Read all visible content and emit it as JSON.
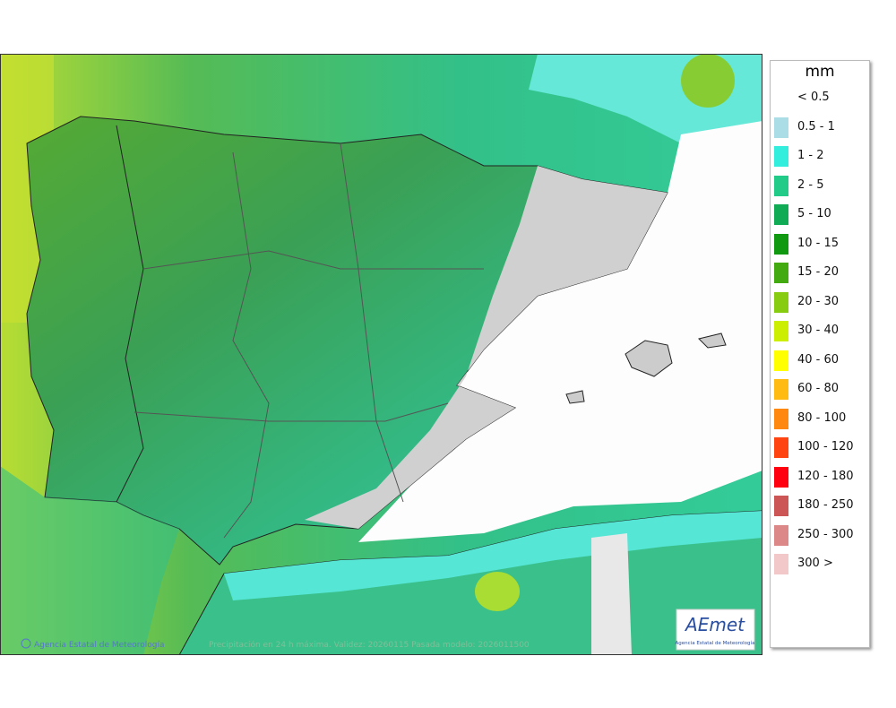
{
  "legend": {
    "unit": "mm",
    "items": [
      {
        "label": "< 0.5"
      },
      {
        "label": "0.5 - 1",
        "color": "#aadde6"
      },
      {
        "label": "1 - 2",
        "color": "#33eedd"
      },
      {
        "label": "2 - 5",
        "color": "#22cc88"
      },
      {
        "label": "5 - 10",
        "color": "#11aa55"
      },
      {
        "label": "10 - 15",
        "color": "#119911"
      },
      {
        "label": "15 - 20",
        "color": "#44aa11"
      },
      {
        "label": "20 - 30",
        "color": "#88cc11"
      },
      {
        "label": "30 - 40",
        "color": "#ccee00"
      },
      {
        "label": "40 - 60",
        "color": "#ffff00"
      },
      {
        "label": "60 - 80",
        "color": "#ffbb11"
      },
      {
        "label": "80 - 100",
        "color": "#ff8811"
      },
      {
        "label": "100 - 120",
        "color": "#ff4411"
      },
      {
        "label": "120 - 180",
        "color": "#ff0011"
      },
      {
        "label": "180 - 250",
        "color": "#cc5555"
      },
      {
        "label": "250 - 300",
        "color": "#dd8888"
      },
      {
        "label": "300 >",
        "color": "#f3c8c8"
      }
    ]
  },
  "footer": {
    "credit": "Agencia Estatal de Meteorología",
    "caption": "Precipitación en 24 h máxima. Validez: 20260115 Pasada modelo: 2026011500"
  },
  "logo": {
    "name": "AEmet",
    "subtitle": "Agencia Estatal de Meteorología"
  }
}
